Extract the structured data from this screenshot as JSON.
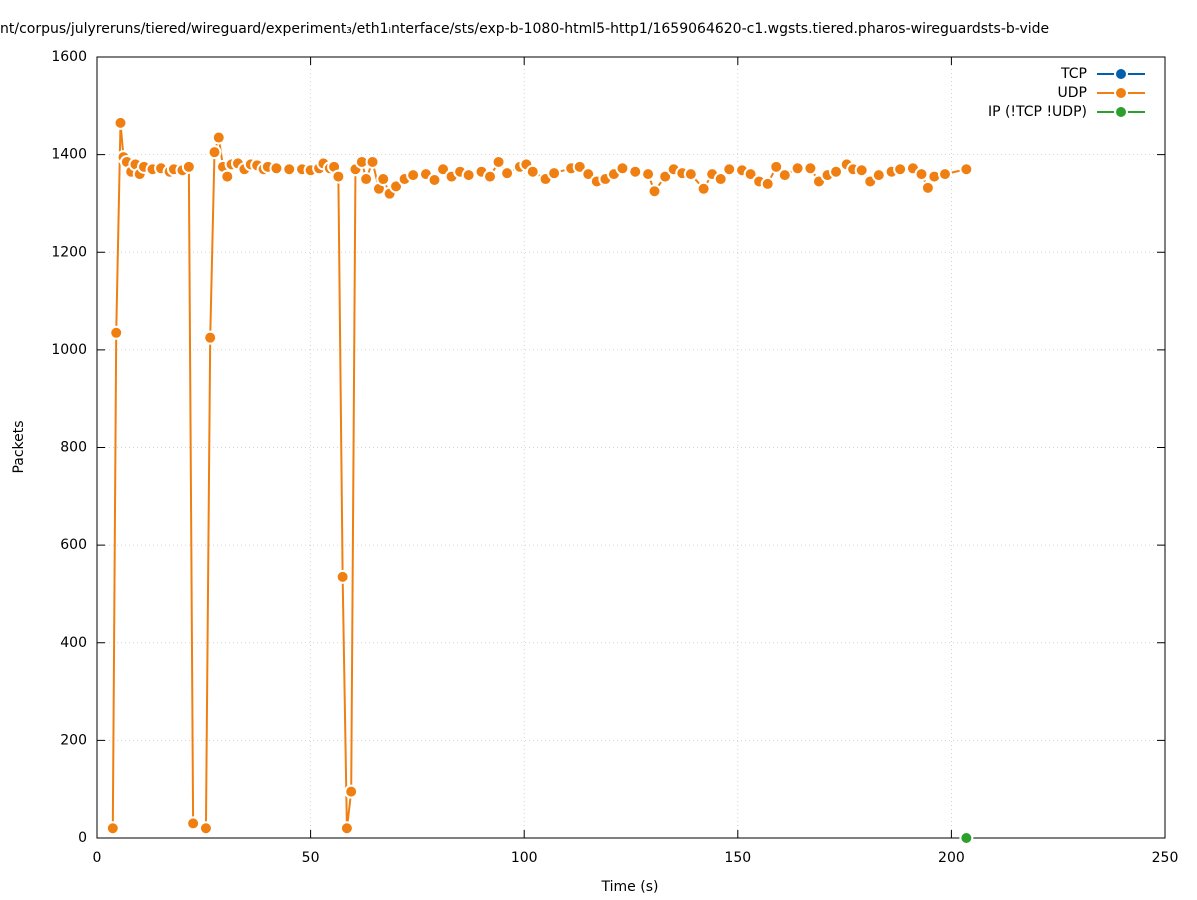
{
  "chart_data": {
    "type": "line",
    "title": "nt/corpus/julyreruns/tiered/wireguard/experiment₃/eth1ᵢnterface/sts/exp-b-1080-html5-http1/1659064620-c1.wgsts.tiered.pharos-wireguardsts-b-vide",
    "x_label": "Time (s)",
    "y_label": "Packets",
    "xlim": [
      0,
      250
    ],
    "ylim": [
      0,
      1600
    ],
    "xticks": [
      0,
      50,
      100,
      150,
      200,
      250
    ],
    "yticks": [
      0,
      200,
      400,
      600,
      800,
      1000,
      1200,
      1400,
      1600
    ],
    "grid": true,
    "legend": "top-right",
    "series": [
      {
        "name": "TCP",
        "color": "#0060ad",
        "x": [],
        "values": []
      },
      {
        "name": "UDP",
        "color": "#f07f12",
        "x": [
          3.7,
          4.5,
          5.5,
          6.2,
          7,
          8,
          9,
          10,
          11,
          13,
          15,
          17,
          18,
          20,
          21.5,
          22.5,
          25.5,
          26.5,
          27.5,
          28.5,
          29.5,
          30.5,
          31.5,
          33,
          34.5,
          36,
          37.5,
          39,
          40,
          42,
          45,
          48,
          50,
          52,
          53,
          54.5,
          55.5,
          56.5,
          57.5,
          58.5,
          59.5,
          60.5,
          62,
          63,
          64.5,
          66,
          67,
          68.5,
          70,
          72,
          74,
          77,
          79,
          81,
          83,
          85,
          87,
          90,
          92,
          94,
          96,
          99,
          100.5,
          102,
          105,
          107,
          111,
          113,
          115,
          117,
          119,
          121,
          123,
          126,
          129,
          130.5,
          133,
          135,
          137,
          139,
          142,
          144,
          146,
          148,
          151,
          153,
          155,
          157,
          159,
          161,
          164,
          167,
          169,
          171,
          173,
          175.5,
          177,
          179,
          181,
          183,
          186,
          188,
          191,
          193,
          194.5,
          196,
          198.5,
          203.5
        ],
        "values": [
          20,
          1035,
          1465,
          1395,
          1385,
          1365,
          1380,
          1360,
          1375,
          1370,
          1372,
          1365,
          1370,
          1368,
          1375,
          30,
          20,
          1025,
          1405,
          1435,
          1375,
          1355,
          1380,
          1382,
          1370,
          1380,
          1378,
          1370,
          1375,
          1372,
          1370,
          1370,
          1368,
          1372,
          1382,
          1372,
          1375,
          1355,
          535,
          20,
          95,
          1370,
          1385,
          1350,
          1385,
          1330,
          1350,
          1320,
          1335,
          1350,
          1358,
          1360,
          1348,
          1370,
          1355,
          1365,
          1358,
          1365,
          1355,
          1385,
          1362,
          1375,
          1380,
          1365,
          1350,
          1362,
          1372,
          1375,
          1360,
          1345,
          1350,
          1360,
          1372,
          1365,
          1360,
          1325,
          1355,
          1370,
          1362,
          1360,
          1330,
          1360,
          1350,
          1370,
          1368,
          1360,
          1345,
          1340,
          1375,
          1358,
          1372,
          1372,
          1345,
          1358,
          1365,
          1380,
          1370,
          1368,
          1345,
          1358,
          1365,
          1370,
          1372,
          1360,
          1332,
          1355,
          1360,
          1370
        ]
      },
      {
        "name": "IP (!TCP  !UDP)",
        "color": "#2ca02c",
        "x": [
          203.5
        ],
        "values": [
          0
        ]
      }
    ]
  }
}
